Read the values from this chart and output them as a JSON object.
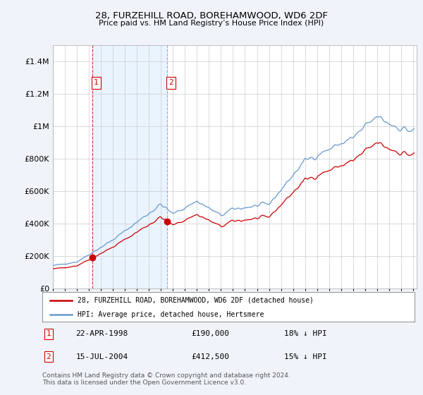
{
  "title": "28, FURZEHILL ROAD, BOREHAMWOOD, WD6 2DF",
  "subtitle": "Price paid vs. HM Land Registry’s House Price Index (HPI)",
  "red_label": "28, FURZEHILL ROAD, BOREHAMWOOD, WD6 2DF (detached house)",
  "blue_label": "HPI: Average price, detached house, Hertsmere",
  "sale1_date": "22-APR-1998",
  "sale1_price": 190000,
  "sale1_label": "18% ↓ HPI",
  "sale2_date": "15-JUL-2004",
  "sale2_price": 412500,
  "sale2_label": "15% ↓ HPI",
  "footer": "Contains HM Land Registry data © Crown copyright and database right 2024.\nThis data is licensed under the Open Government Licence v3.0.",
  "bg_color": "#f0f4fa",
  "plot_bg_color": "#ffffff",
  "red_color": "#cc0000",
  "blue_color": "#6699cc",
  "shade_color": "#ddeeff",
  "grid_color": "#cccccc",
  "ylim": [
    0,
    1500000
  ],
  "yticks": [
    0,
    200000,
    400000,
    600000,
    800000,
    1000000,
    1200000,
    1400000
  ],
  "ytick_labels": [
    "£0",
    "£200K",
    "£400K",
    "£600K",
    "£800K",
    "£1M",
    "£1.2M",
    "£1.4M"
  ],
  "sale1_x": 1998.31,
  "sale2_x": 2004.54,
  "xlim_left": 1995.0,
  "xlim_right": 2025.3
}
